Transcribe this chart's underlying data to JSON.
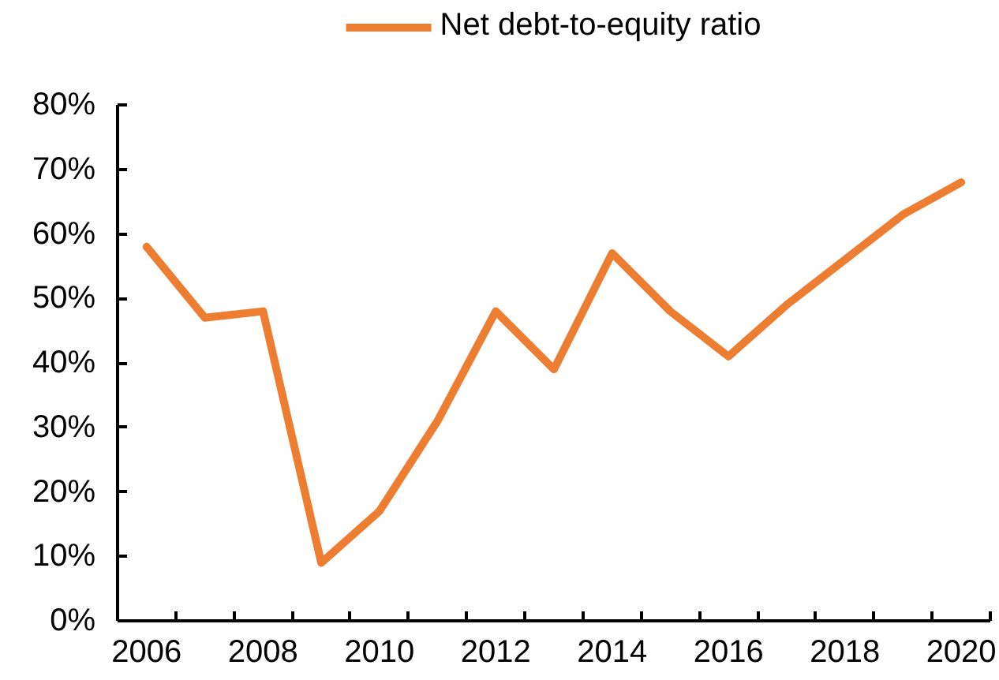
{
  "chart_data": {
    "type": "line",
    "categories": [
      "2006",
      null,
      "2008",
      null,
      "2010",
      null,
      "2012",
      null,
      "2014",
      null,
      "2016",
      null,
      "2018",
      null,
      "2020"
    ],
    "series": [
      {
        "name": "Net debt-to-equity ratio",
        "color": "#ed7d31",
        "values": [
          58,
          47,
          48,
          9,
          17,
          31,
          48,
          39,
          57,
          48,
          41,
          49,
          56,
          63,
          68
        ]
      }
    ],
    "ylim": [
      0,
      80
    ],
    "yticks": [
      {
        "value": 0,
        "label": "0%"
      },
      {
        "value": 10,
        "label": "10%"
      },
      {
        "value": 20,
        "label": "20%"
      },
      {
        "value": 30,
        "label": "30%"
      },
      {
        "value": 40,
        "label": "40%"
      },
      {
        "value": 50,
        "label": "50%"
      },
      {
        "value": 60,
        "label": "60%"
      },
      {
        "value": 70,
        "label": "70%"
      },
      {
        "value": 80,
        "label": "80%"
      }
    ],
    "grid": false,
    "legend": "top",
    "marker": "none",
    "line_style": "solid"
  }
}
